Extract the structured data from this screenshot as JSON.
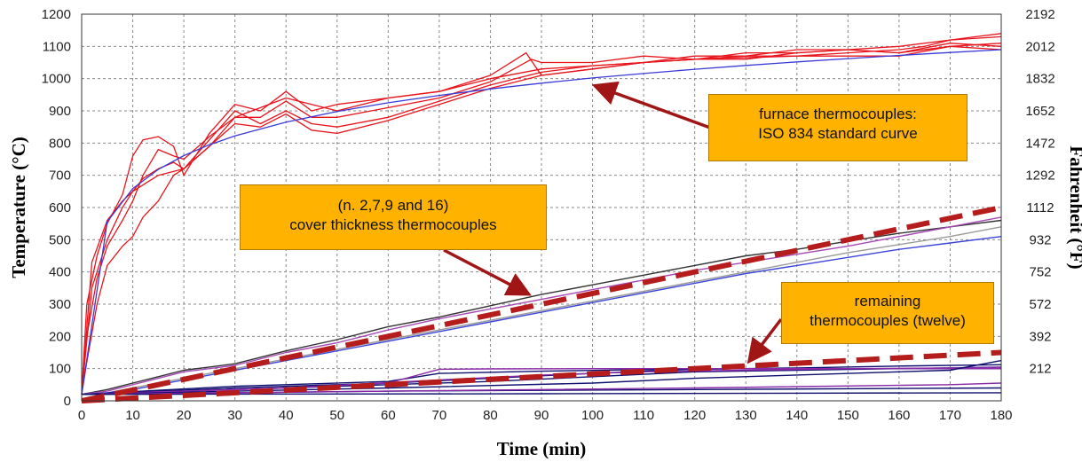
{
  "chart_data": {
    "type": "line",
    "xlabel": "Time (min)",
    "ylabel": "Temperature (°C)",
    "y2label": "Fahrenheit (°F)",
    "xlim": [
      0,
      180
    ],
    "ylim": [
      0,
      1200
    ],
    "x_ticks": [
      0,
      10,
      20,
      30,
      40,
      50,
      60,
      70,
      80,
      90,
      100,
      110,
      120,
      130,
      140,
      150,
      160,
      170,
      180
    ],
    "y_ticks": [
      0,
      100,
      200,
      300,
      400,
      500,
      600,
      700,
      800,
      900,
      1000,
      1100,
      1200
    ],
    "y2_ticks": [
      {
        "c": 100,
        "label": "212"
      },
      {
        "c": 200,
        "label": "392"
      },
      {
        "c": 300,
        "label": "572"
      },
      {
        "c": 400,
        "label": "752"
      },
      {
        "c": 500,
        "label": "932"
      },
      {
        "c": 600,
        "label": "1112"
      },
      {
        "c": 700,
        "label": "1292"
      },
      {
        "c": 800,
        "label": "1472"
      },
      {
        "c": 900,
        "label": "1652"
      },
      {
        "c": 1000,
        "label": "1832"
      },
      {
        "c": 1100,
        "label": "2012"
      },
      {
        "c": 1200,
        "label": "2192"
      }
    ],
    "grid": true,
    "colors": {
      "furnace": "#e8141c",
      "iso": "#3a3ad8",
      "cover_black": "#333333",
      "cover_purple": "#a64ab5",
      "cover_blue": "#3c46d8",
      "cover_gray": "#9a9a9a",
      "remaining_navy": "#101070",
      "remaining_purple": "#8a2aa8",
      "dashed": "#b51c1c",
      "arrow": "#a01515"
    },
    "series": [
      {
        "group": "furnace",
        "x": [
          0,
          1,
          3,
          5,
          8,
          10,
          12,
          15,
          18,
          20,
          25,
          30,
          35,
          40,
          45,
          50,
          60,
          70,
          80,
          85,
          87,
          90,
          100,
          110,
          120,
          130,
          140,
          150,
          160,
          165,
          170,
          175,
          180
        ],
        "y": [
          20,
          300,
          450,
          550,
          640,
          760,
          810,
          820,
          790,
          700,
          830,
          920,
          900,
          960,
          900,
          920,
          940,
          960,
          1010,
          1060,
          1080,
          1010,
          1030,
          1050,
          1060,
          1070,
          1070,
          1080,
          1090,
          1100,
          1120,
          1130,
          1140
        ]
      },
      {
        "group": "furnace",
        "x": [
          0,
          1,
          3,
          5,
          8,
          10,
          12,
          15,
          18,
          20,
          25,
          30,
          35,
          40,
          45,
          50,
          60,
          70,
          80,
          88,
          90,
          100,
          110,
          120,
          130,
          140,
          150,
          160,
          170,
          180
        ],
        "y": [
          20,
          200,
          380,
          480,
          560,
          620,
          700,
          780,
          760,
          750,
          820,
          880,
          880,
          930,
          880,
          880,
          910,
          940,
          990,
          1060,
          1050,
          1050,
          1070,
          1060,
          1080,
          1080,
          1090,
          1080,
          1110,
          1100
        ]
      },
      {
        "group": "furnace",
        "x": [
          0,
          2,
          5,
          8,
          10,
          12,
          15,
          18,
          20,
          25,
          30,
          35,
          40,
          45,
          50,
          60,
          70,
          80,
          90,
          100,
          110,
          120,
          130,
          140,
          150,
          160,
          170,
          180
        ],
        "y": [
          20,
          430,
          560,
          620,
          650,
          690,
          720,
          740,
          720,
          810,
          900,
          860,
          900,
          860,
          850,
          880,
          930,
          980,
          1020,
          1040,
          1050,
          1070,
          1070,
          1090,
          1090,
          1100,
          1120,
          1130
        ]
      },
      {
        "group": "furnace",
        "x": [
          0,
          1,
          3,
          5,
          8,
          10,
          12,
          15,
          18,
          20,
          25,
          30,
          35,
          40,
          45,
          50,
          60,
          70,
          80,
          90,
          100,
          110,
          120,
          130,
          140,
          150,
          160,
          170,
          180
        ],
        "y": [
          20,
          120,
          300,
          420,
          480,
          510,
          570,
          620,
          700,
          720,
          790,
          860,
          850,
          890,
          840,
          830,
          870,
          920,
          970,
          1010,
          1030,
          1050,
          1060,
          1060,
          1080,
          1090,
          1080,
          1100,
          1090
        ]
      },
      {
        "group": "furnace",
        "x": [
          0,
          2,
          5,
          8,
          10,
          15,
          20,
          25,
          30,
          40,
          50,
          60,
          70,
          80,
          90,
          100,
          120,
          140,
          160,
          170,
          180
        ],
        "y": [
          20,
          350,
          500,
          600,
          650,
          700,
          720,
          790,
          880,
          940,
          900,
          940,
          960,
          1000,
          1030,
          1040,
          1060,
          1070,
          1070,
          1100,
          1110
        ]
      },
      {
        "group": "iso",
        "x": [
          0,
          5,
          10,
          15,
          20,
          25,
          30,
          40,
          50,
          60,
          70,
          80,
          90,
          100,
          110,
          120,
          130,
          140,
          150,
          160,
          170,
          180
        ],
        "y": [
          20,
          556,
          659,
          718,
          761,
          795,
          822,
          865,
          898,
          925,
          948,
          968,
          986,
          1002,
          1016,
          1029,
          1041,
          1052,
          1062,
          1072,
          1081,
          1090
        ]
      },
      {
        "group": "cover_black",
        "x": [
          0,
          5,
          10,
          15,
          20,
          25,
          30,
          40,
          50,
          60,
          70,
          80,
          90,
          100,
          110,
          120,
          130,
          140,
          150,
          160,
          170,
          180
        ],
        "y": [
          20,
          35,
          55,
          75,
          95,
          105,
          115,
          155,
          190,
          230,
          260,
          295,
          330,
          360,
          390,
          420,
          450,
          470,
          495,
          520,
          540,
          560
        ]
      },
      {
        "group": "cover_purple",
        "x": [
          0,
          5,
          10,
          15,
          20,
          25,
          30,
          40,
          50,
          60,
          70,
          80,
          90,
          100,
          110,
          120,
          130,
          140,
          150,
          160,
          170,
          180
        ],
        "y": [
          20,
          30,
          50,
          70,
          90,
          100,
          110,
          150,
          180,
          220,
          255,
          285,
          315,
          345,
          375,
          405,
          430,
          455,
          480,
          510,
          540,
          570
        ]
      },
      {
        "group": "cover_gray",
        "x": [
          0,
          5,
          10,
          15,
          20,
          25,
          30,
          40,
          50,
          60,
          70,
          80,
          90,
          100,
          110,
          120,
          130,
          140,
          150,
          160,
          170,
          180
        ],
        "y": [
          20,
          25,
          40,
          55,
          70,
          85,
          100,
          130,
          160,
          190,
          220,
          250,
          280,
          310,
          340,
          370,
          400,
          430,
          460,
          485,
          510,
          540
        ]
      },
      {
        "group": "cover_blue",
        "x": [
          0,
          5,
          10,
          15,
          20,
          25,
          30,
          40,
          50,
          60,
          70,
          80,
          90,
          100,
          110,
          120,
          130,
          140,
          150,
          160,
          170,
          180
        ],
        "y": [
          20,
          25,
          35,
          50,
          65,
          80,
          95,
          125,
          155,
          185,
          215,
          245,
          275,
          305,
          335,
          365,
          395,
          420,
          445,
          470,
          490,
          510
        ]
      },
      {
        "group": "remaining_navy",
        "x": [
          0,
          30,
          60,
          70,
          90,
          110,
          130,
          140,
          150,
          160,
          170,
          180
        ],
        "y": [
          20,
          45,
          60,
          85,
          92,
          97,
          100,
          100,
          100,
          100,
          100,
          100
        ]
      },
      {
        "group": "remaining_navy",
        "x": [
          0,
          30,
          60,
          80,
          100,
          110,
          120,
          140,
          160,
          180
        ],
        "y": [
          20,
          40,
          55,
          70,
          85,
          92,
          98,
          102,
          108,
          112
        ]
      },
      {
        "group": "remaining_navy",
        "x": [
          0,
          40,
          60,
          80,
          100,
          120,
          140,
          160,
          180
        ],
        "y": [
          20,
          40,
          50,
          60,
          75,
          90,
          95,
          100,
          105
        ]
      },
      {
        "group": "remaining_purple",
        "x": [
          0,
          40,
          60,
          70,
          80,
          100,
          120,
          140,
          160,
          180
        ],
        "y": [
          20,
          40,
          55,
          98,
          99,
          100,
          100,
          100,
          100,
          100
        ]
      },
      {
        "group": "remaining_purple",
        "x": [
          0,
          40,
          70,
          90,
          110,
          130,
          150,
          170,
          180
        ],
        "y": [
          20,
          40,
          65,
          80,
          90,
          95,
          100,
          102,
          104
        ]
      },
      {
        "group": "remaining_navy",
        "x": [
          0,
          60,
          100,
          120,
          140,
          160,
          170,
          180
        ],
        "y": [
          20,
          40,
          55,
          70,
          80,
          90,
          95,
          125
        ]
      },
      {
        "group": "remaining_navy",
        "x": [
          0,
          60,
          120,
          180
        ],
        "y": [
          20,
          30,
          35,
          40
        ]
      },
      {
        "group": "remaining_purple",
        "x": [
          0,
          60,
          120,
          170,
          180
        ],
        "y": [
          20,
          30,
          40,
          50,
          55
        ]
      },
      {
        "group": "remaining_navy",
        "x": [
          0,
          90,
          180
        ],
        "y": [
          20,
          22,
          25
        ]
      }
    ],
    "dashed_lines": [
      {
        "name": "cover_trend",
        "x": [
          0,
          180
        ],
        "y": [
          0,
          600
        ]
      },
      {
        "name": "remaining_trend",
        "x": [
          0,
          180
        ],
        "y": [
          0,
          150
        ]
      }
    ],
    "annotations": [
      {
        "text": [
          "furnace thermocouples:",
          "ISO 834 standard curve"
        ],
        "arrow_to": {
          "x": 101,
          "y": 975
        }
      },
      {
        "text": [
          "(n. 2,7,9 and 16)",
          "cover thickness thermocouples"
        ],
        "arrow_to": {
          "x": 87,
          "y": 335
        }
      },
      {
        "text": [
          "remaining",
          "thermocouples (twelve)"
        ],
        "arrow_to": {
          "x": 131,
          "y": 130
        }
      }
    ]
  }
}
